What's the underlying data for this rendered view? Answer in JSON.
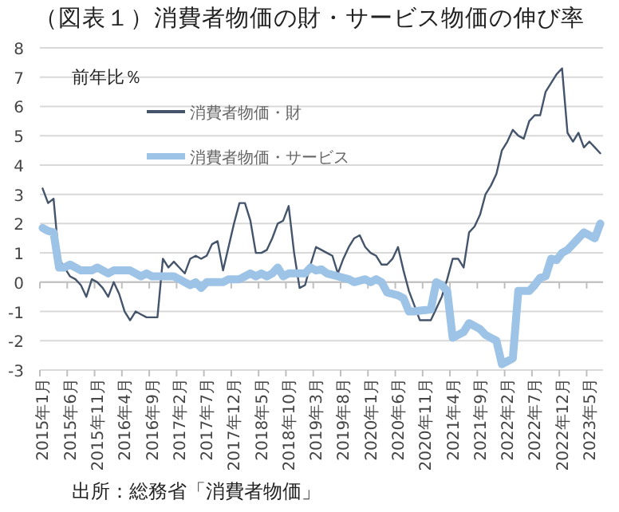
{
  "chart_data": {
    "type": "line",
    "title": "（図表１）消費者物価の財・サービス物価の伸び率",
    "ylabel": "前年比％",
    "annotations": [
      "出所：総務省「消費者物価」"
    ],
    "categories": [
      "2015年1月",
      null,
      null,
      null,
      null,
      "2015年6月",
      null,
      null,
      null,
      null,
      "2015年11月",
      null,
      null,
      null,
      null,
      "2016年4月",
      null,
      null,
      null,
      null,
      "2016年9月",
      null,
      null,
      null,
      null,
      "2017年2月",
      null,
      null,
      null,
      null,
      "2017年7月",
      null,
      null,
      null,
      null,
      "2017年12月",
      null,
      null,
      null,
      null,
      "2018年5月",
      null,
      null,
      null,
      null,
      "2018年10月",
      null,
      null,
      null,
      null,
      "2019年3月",
      null,
      null,
      null,
      null,
      "2019年8月",
      null,
      null,
      null,
      null,
      "2020年1月",
      null,
      null,
      null,
      null,
      "2020年6月",
      null,
      null,
      null,
      null,
      "2020年11月",
      null,
      null,
      null,
      null,
      "2021年4月",
      null,
      null,
      null,
      null,
      "2021年9月",
      null,
      null,
      null,
      null,
      "2022年2月",
      null,
      null,
      null,
      null,
      "2022年7月",
      null,
      null,
      null,
      null,
      "2022年12月",
      null,
      null,
      null,
      null,
      "2023年5月",
      null,
      null
    ],
    "series": [
      {
        "name": "消費者物価・財",
        "color": "#44546a",
        "values": [
          3.2,
          2.7,
          2.85,
          0.8,
          0.5,
          0.2,
          0.1,
          -0.1,
          -0.5,
          0.1,
          0,
          -0.2,
          -0.5,
          0,
          -0.4,
          -1.0,
          -1.3,
          -1.0,
          -1.1,
          -1.2,
          -1.2,
          -1.2,
          0.8,
          0.5,
          0.7,
          0.5,
          0.3,
          0.8,
          0.9,
          0.8,
          0.9,
          1.3,
          1.4,
          0.4,
          1.2,
          2.0,
          2.7,
          2.7,
          2.1,
          1.0,
          1.0,
          1.1,
          1.5,
          2.0,
          2.1,
          2.6,
          1.0,
          -0.2,
          -0.1,
          0.6,
          1.2,
          1.1,
          1.0,
          0.9,
          0.3,
          0.8,
          1.2,
          1.5,
          1.6,
          1.2,
          1.0,
          0.9,
          0.6,
          0.6,
          0.8,
          1.2,
          0.4,
          -0.3,
          -0.8,
          -1.3,
          -1.3,
          -1.3,
          -0.9,
          -0.5,
          0.1,
          0.8,
          0.8,
          0.5,
          1.7,
          1.9,
          2.3,
          3.0,
          3.3,
          3.7,
          4.5,
          4.8,
          5.2,
          5.0,
          4.9,
          5.5,
          5.7,
          5.7,
          6.5,
          6.8,
          7.1,
          7.3,
          5.1,
          4.8,
          5.1,
          4.6,
          4.8,
          4.6,
          4.4
        ]
      },
      {
        "name": "消費者物価・サービス",
        "color": "#9dc3e6",
        "values": [
          1.85,
          1.75,
          1.7,
          0.5,
          0.5,
          0.6,
          0.5,
          0.4,
          0.4,
          0.4,
          0.5,
          0.4,
          0.3,
          0.4,
          0.4,
          0.4,
          0.4,
          0.3,
          0.2,
          0.3,
          0.2,
          0.2,
          0.2,
          0.2,
          0.2,
          0.1,
          0,
          -0.1,
          0,
          -0.2,
          0,
          0,
          0,
          0,
          0.1,
          0.1,
          0.1,
          0.2,
          0.3,
          0.2,
          0.3,
          0.2,
          0.3,
          0.5,
          0.2,
          0.3,
          0.3,
          0.3,
          0.3,
          0.5,
          0.4,
          0.44,
          0.3,
          0.25,
          0.2,
          0.15,
          0.1,
          0,
          0.05,
          0.1,
          0,
          0.1,
          0,
          -0.35,
          -0.4,
          -0.45,
          -0.55,
          -1.0,
          -1.0,
          -0.97,
          -0.95,
          -0.93,
          0,
          -0.1,
          -0.3,
          -1.9,
          -1.8,
          -1.7,
          -1.4,
          -1.5,
          -1.6,
          -1.8,
          -1.9,
          -2.0,
          -2.8,
          -2.7,
          -2.6,
          -0.3,
          -0.3,
          -0.3,
          -0.1,
          0.15,
          0.2,
          0.8,
          0.75,
          1.0,
          1.1,
          1.3,
          1.5,
          1.7,
          1.6,
          1.5,
          2.0
        ]
      }
    ],
    "ylim": [
      -3,
      8
    ],
    "yticks": [
      -3,
      -2,
      -1,
      0,
      1,
      2,
      3,
      4,
      5,
      6,
      7,
      8
    ],
    "grid": "y",
    "legend": "top left"
  }
}
